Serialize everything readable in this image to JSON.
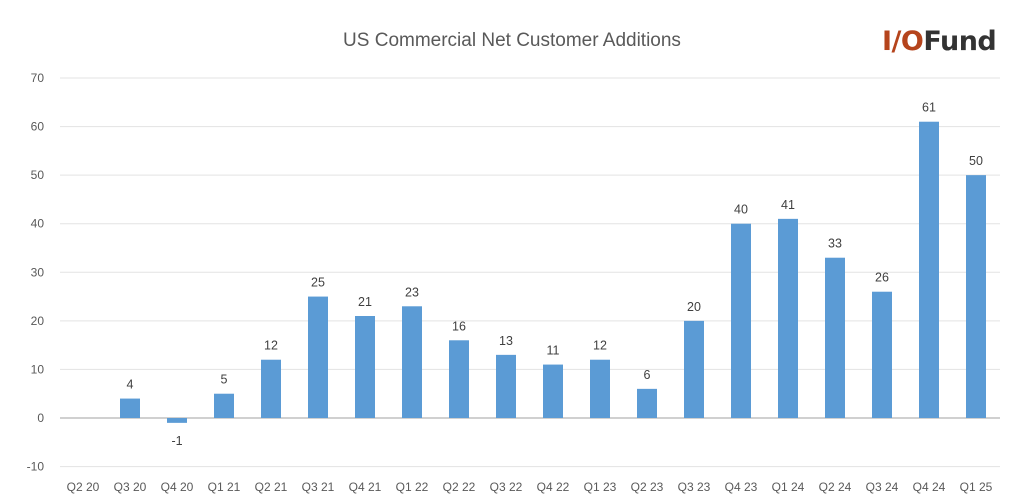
{
  "logo": {
    "part1": "I/O",
    "part2": "Fund"
  },
  "chart_data": {
    "type": "bar",
    "title": "US Commercial Net Customer Additions",
    "xlabel": "",
    "ylabel": "",
    "ylim": [
      -10,
      70
    ],
    "yticks": [
      -10,
      0,
      10,
      20,
      30,
      40,
      50,
      60,
      70
    ],
    "grid": true,
    "bar_color": "#5b9bd5",
    "categories": [
      "Q2 20",
      "Q3 20",
      "Q4 20",
      "Q1 21",
      "Q2 21",
      "Q3 21",
      "Q4 21",
      "Q1 22",
      "Q2 22",
      "Q3 22",
      "Q4 22",
      "Q1 23",
      "Q2 23",
      "Q3 23",
      "Q4 23",
      "Q1 24",
      "Q2 24",
      "Q3 24",
      "Q4 24",
      "Q1 25"
    ],
    "values": [
      null,
      4,
      -1,
      5,
      12,
      25,
      21,
      23,
      16,
      13,
      11,
      12,
      6,
      20,
      40,
      41,
      33,
      26,
      61,
      50
    ]
  }
}
